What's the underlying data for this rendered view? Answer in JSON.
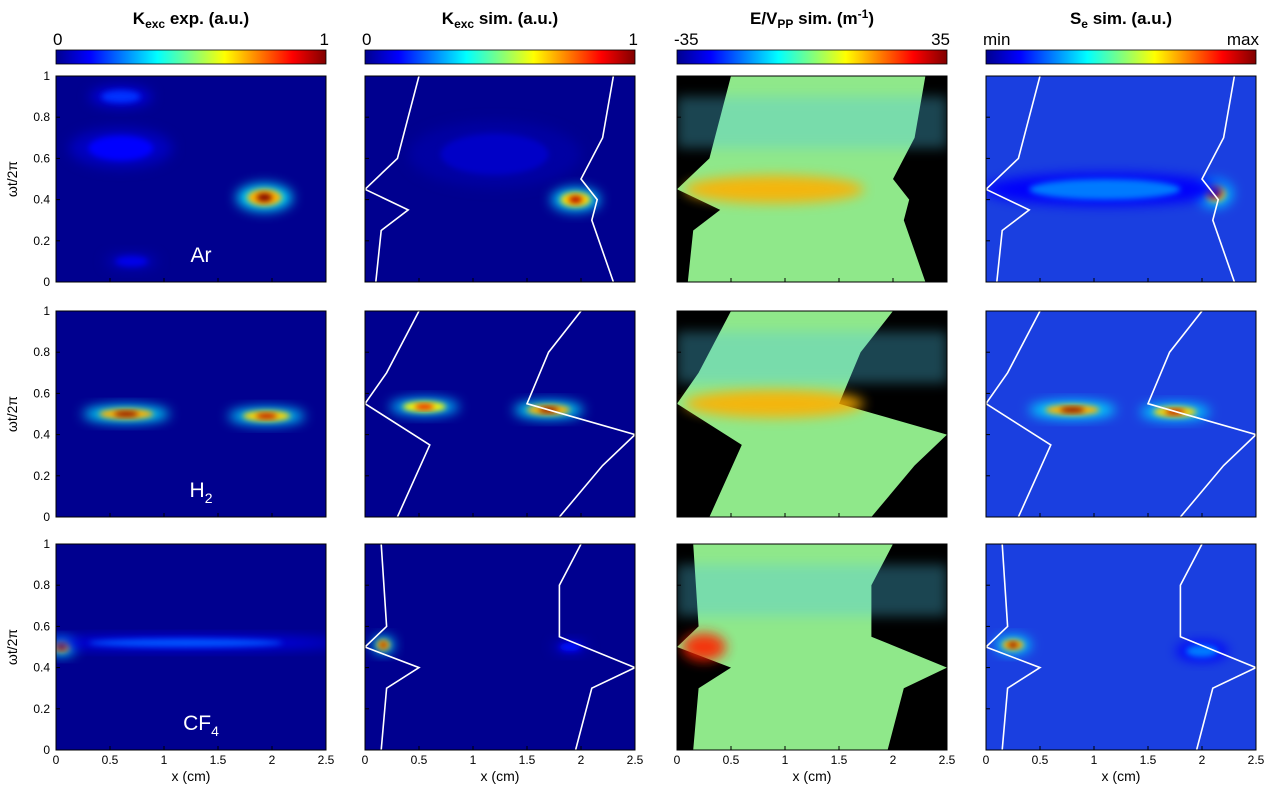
{
  "figure": {
    "columns": [
      {
        "title_main": "K",
        "title_sub": "exc",
        "title_rest": " exp. (a.u.)",
        "cb_left": "0",
        "cb_right": "1",
        "colormap": "jet"
      },
      {
        "title_main": "K",
        "title_sub": "exc",
        "title_rest": " sim. (a.u.)",
        "cb_left": "0",
        "cb_right": "1",
        "colormap": "jet"
      },
      {
        "title_main": "E/V",
        "title_sub": "PP",
        "title_rest": " sim. (m",
        "title_sup": "-1",
        "title_end": ")",
        "cb_left": "-35",
        "cb_right": "35",
        "colormap": "jet"
      },
      {
        "title_main": "S",
        "title_sub": "e",
        "title_rest": " sim. (a.u.)",
        "cb_left": "min",
        "cb_right": "max",
        "colormap": "jet"
      }
    ],
    "rows": [
      {
        "gas": "Ar",
        "gas_main": "Ar",
        "gas_sub": ""
      },
      {
        "gas": "H2",
        "gas_main": "H",
        "gas_sub": "2"
      },
      {
        "gas": "CF4",
        "gas_main": "CF",
        "gas_sub": "4"
      }
    ],
    "colors": {
      "jet_blue": "#00008f",
      "background_dark": "#0b1fa6",
      "sheath_black": "#000000",
      "line_white": "#ffffff"
    }
  },
  "chart_data": {
    "type": "heatmap",
    "layout": "3 rows x 4 columns of spatio-temporal maps",
    "xlabel": "x (cm)",
    "ylabel": "ωt/2π",
    "xlim": [
      0,
      2.5
    ],
    "ylim": [
      0,
      1
    ],
    "x_ticks": [
      "0",
      "0.5",
      "1",
      "1.5",
      "2",
      "2.5"
    ],
    "y_ticks": [
      "0",
      "0.2",
      "0.4",
      "0.6",
      "0.8",
      "1"
    ],
    "panels": [
      {
        "row": "Ar",
        "column": "Kexc exp.",
        "hotspots": [
          {
            "x": 1.93,
            "y": 0.41,
            "value": 1.0,
            "sx": 0.16,
            "sy": 0.04
          },
          {
            "x": 0.6,
            "y": 0.9,
            "value": 0.25,
            "sx": 0.18,
            "sy": 0.03
          },
          {
            "x": 0.6,
            "y": 0.65,
            "value": 0.18,
            "sx": 0.3,
            "sy": 0.06
          },
          {
            "x": 0.7,
            "y": 0.1,
            "value": 0.15,
            "sx": 0.15,
            "sy": 0.025
          }
        ]
      },
      {
        "row": "Ar",
        "column": "Kexc sim.",
        "hotspots": [
          {
            "x": 1.95,
            "y": 0.4,
            "value": 0.95,
            "sx": 0.14,
            "sy": 0.035
          },
          {
            "x": 1.2,
            "y": 0.62,
            "value": 0.1,
            "sx": 0.5,
            "sy": 0.1
          }
        ]
      },
      {
        "row": "Ar",
        "column": "Se sim.",
        "hotspots": [
          {
            "x": 2.12,
            "y": 0.43,
            "value": 0.95,
            "sx": 0.1,
            "sy": 0.04
          },
          {
            "x": 1.1,
            "y": 0.45,
            "value": 0.35,
            "sx": 0.7,
            "sy": 0.05
          }
        ]
      },
      {
        "row": "H2",
        "column": "Kexc exp.",
        "hotspots": [
          {
            "x": 0.65,
            "y": 0.5,
            "value": 1.0,
            "sx": 0.25,
            "sy": 0.025
          },
          {
            "x": 1.95,
            "y": 0.49,
            "value": 0.95,
            "sx": 0.22,
            "sy": 0.025
          }
        ]
      },
      {
        "row": "H2",
        "column": "Kexc sim.",
        "hotspots": [
          {
            "x": 0.55,
            "y": 0.535,
            "value": 0.9,
            "sx": 0.2,
            "sy": 0.025
          },
          {
            "x": 1.7,
            "y": 0.52,
            "value": 1.0,
            "sx": 0.2,
            "sy": 0.025
          }
        ]
      },
      {
        "row": "H2",
        "column": "Se sim.",
        "hotspots": [
          {
            "x": 0.8,
            "y": 0.52,
            "value": 1.0,
            "sx": 0.25,
            "sy": 0.025
          },
          {
            "x": 1.75,
            "y": 0.51,
            "value": 0.95,
            "sx": 0.2,
            "sy": 0.025
          }
        ]
      },
      {
        "row": "CF4",
        "column": "Kexc exp.",
        "hotspots": [
          {
            "x": 0.05,
            "y": 0.5,
            "value": 1.0,
            "sx": 0.08,
            "sy": 0.025
          },
          {
            "x": 1.2,
            "y": 0.52,
            "value": 0.3,
            "sx": 0.9,
            "sy": 0.02
          }
        ]
      },
      {
        "row": "CF4",
        "column": "Kexc sim.",
        "hotspots": [
          {
            "x": 0.17,
            "y": 0.51,
            "value": 1.0,
            "sx": 0.06,
            "sy": 0.025
          },
          {
            "x": 1.9,
            "y": 0.5,
            "value": 0.2,
            "sx": 0.1,
            "sy": 0.02
          }
        ]
      },
      {
        "row": "CF4",
        "column": "Se sim.",
        "hotspots": [
          {
            "x": 0.25,
            "y": 0.51,
            "value": 1.0,
            "sx": 0.1,
            "sy": 0.025
          },
          {
            "x": 2.0,
            "y": 0.48,
            "value": 0.35,
            "sx": 0.15,
            "sy": 0.03
          }
        ]
      }
    ],
    "sheath_edges": [
      {
        "row": "Ar",
        "left": [
          [
            0.1,
            0
          ],
          [
            0.15,
            0.25
          ],
          [
            0.4,
            0.35
          ],
          [
            0.0,
            0.45
          ],
          [
            0.3,
            0.6
          ],
          [
            0.4,
            0.8
          ],
          [
            0.5,
            1
          ]
        ],
        "right": [
          [
            2.3,
            0
          ],
          [
            2.1,
            0.3
          ],
          [
            2.15,
            0.4
          ],
          [
            2.0,
            0.5
          ],
          [
            2.2,
            0.7
          ],
          [
            2.3,
            1
          ]
        ]
      },
      {
        "row": "H2",
        "left": [
          [
            0.3,
            0
          ],
          [
            0.6,
            0.35
          ],
          [
            0.0,
            0.55
          ],
          [
            0.2,
            0.7
          ],
          [
            0.5,
            1
          ]
        ],
        "right": [
          [
            1.8,
            0
          ],
          [
            2.2,
            0.25
          ],
          [
            2.5,
            0.4
          ],
          [
            1.5,
            0.55
          ],
          [
            1.7,
            0.8
          ],
          [
            2.0,
            1
          ]
        ]
      },
      {
        "row": "CF4",
        "left": [
          [
            0.15,
            0
          ],
          [
            0.2,
            0.3
          ],
          [
            0.5,
            0.4
          ],
          [
            0.0,
            0.5
          ],
          [
            0.2,
            0.6
          ],
          [
            0.15,
            1
          ]
        ],
        "right": [
          [
            1.95,
            0
          ],
          [
            2.1,
            0.3
          ],
          [
            2.5,
            0.4
          ],
          [
            1.8,
            0.55
          ],
          [
            1.8,
            0.8
          ],
          [
            2.0,
            1
          ]
        ]
      }
    ]
  }
}
